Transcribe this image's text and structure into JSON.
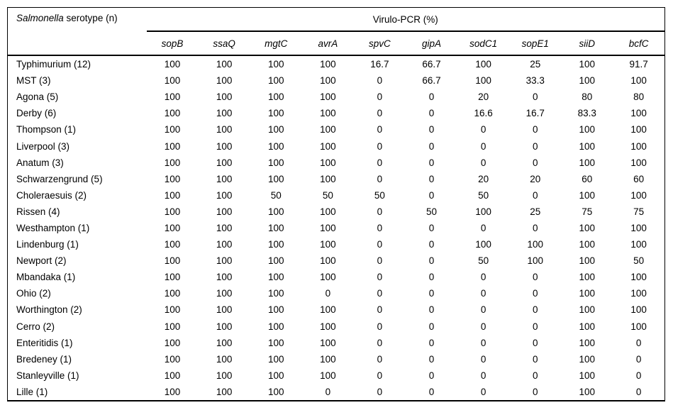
{
  "chart_data": {
    "type": "table",
    "row_header_genus": "Salmonella",
    "row_header_rest": " serotype (n)",
    "group_header": "Virulo-PCR (%)",
    "gene_columns": [
      "sopB",
      "ssaQ",
      "mgtC",
      "avrA",
      "spvC",
      "gipA",
      "sodC1",
      "sopE1",
      "siiD",
      "bcfC"
    ],
    "rows": [
      {
        "serotype": "Typhimurium (12)",
        "values": [
          "100",
          "100",
          "100",
          "100",
          "16.7",
          "66.7",
          "100",
          "25",
          "100",
          "91.7"
        ]
      },
      {
        "serotype": "MST (3)",
        "values": [
          "100",
          "100",
          "100",
          "100",
          "0",
          "66.7",
          "100",
          "33.3",
          "100",
          "100"
        ]
      },
      {
        "serotype": "Agona (5)",
        "values": [
          "100",
          "100",
          "100",
          "100",
          "0",
          "0",
          "20",
          "0",
          "80",
          "80"
        ]
      },
      {
        "serotype": "Derby (6)",
        "values": [
          "100",
          "100",
          "100",
          "100",
          "0",
          "0",
          "16.6",
          "16.7",
          "83.3",
          "100"
        ]
      },
      {
        "serotype": "Thompson (1)",
        "values": [
          "100",
          "100",
          "100",
          "100",
          "0",
          "0",
          "0",
          "0",
          "100",
          "100"
        ]
      },
      {
        "serotype": "Liverpool (3)",
        "values": [
          "100",
          "100",
          "100",
          "100",
          "0",
          "0",
          "0",
          "0",
          "100",
          "100"
        ]
      },
      {
        "serotype": "Anatum (3)",
        "values": [
          "100",
          "100",
          "100",
          "100",
          "0",
          "0",
          "0",
          "0",
          "100",
          "100"
        ]
      },
      {
        "serotype": "Schwarzengrund (5)",
        "values": [
          "100",
          "100",
          "100",
          "100",
          "0",
          "0",
          "20",
          "20",
          "60",
          "60"
        ]
      },
      {
        "serotype": "Choleraesuis (2)",
        "values": [
          "100",
          "100",
          "50",
          "50",
          "50",
          "0",
          "50",
          "0",
          "100",
          "100"
        ]
      },
      {
        "serotype": "Rissen (4)",
        "values": [
          "100",
          "100",
          "100",
          "100",
          "0",
          "50",
          "100",
          "25",
          "75",
          "75"
        ]
      },
      {
        "serotype": "Westhampton (1)",
        "values": [
          "100",
          "100",
          "100",
          "100",
          "0",
          "0",
          "0",
          "0",
          "100",
          "100"
        ]
      },
      {
        "serotype": "Lindenburg (1)",
        "values": [
          "100",
          "100",
          "100",
          "100",
          "0",
          "0",
          "100",
          "100",
          "100",
          "100"
        ]
      },
      {
        "serotype": "Newport (2)",
        "values": [
          "100",
          "100",
          "100",
          "100",
          "0",
          "0",
          "50",
          "100",
          "100",
          "50"
        ]
      },
      {
        "serotype": "Mbandaka (1)",
        "values": [
          "100",
          "100",
          "100",
          "100",
          "0",
          "0",
          "0",
          "0",
          "100",
          "100"
        ]
      },
      {
        "serotype": "Ohio (2)",
        "values": [
          "100",
          "100",
          "100",
          "0",
          "0",
          "0",
          "0",
          "0",
          "100",
          "100"
        ]
      },
      {
        "serotype": "Worthington (2)",
        "values": [
          "100",
          "100",
          "100",
          "100",
          "0",
          "0",
          "0",
          "0",
          "100",
          "100"
        ]
      },
      {
        "serotype": "Cerro (2)",
        "values": [
          "100",
          "100",
          "100",
          "100",
          "0",
          "0",
          "0",
          "0",
          "100",
          "100"
        ]
      },
      {
        "serotype": "Enteritidis (1)",
        "values": [
          "100",
          "100",
          "100",
          "100",
          "0",
          "0",
          "0",
          "0",
          "100",
          "0"
        ]
      },
      {
        "serotype": "Bredeney (1)",
        "values": [
          "100",
          "100",
          "100",
          "100",
          "0",
          "0",
          "0",
          "0",
          "100",
          "0"
        ]
      },
      {
        "serotype": "Stanleyville (1)",
        "values": [
          "100",
          "100",
          "100",
          "100",
          "0",
          "0",
          "0",
          "0",
          "100",
          "0"
        ]
      },
      {
        "serotype": "Lille (1)",
        "values": [
          "100",
          "100",
          "100",
          "0",
          "0",
          "0",
          "0",
          "0",
          "100",
          "0"
        ]
      }
    ]
  },
  "colors": {
    "border": "#000000",
    "text": "#000000",
    "background": "#ffffff"
  }
}
